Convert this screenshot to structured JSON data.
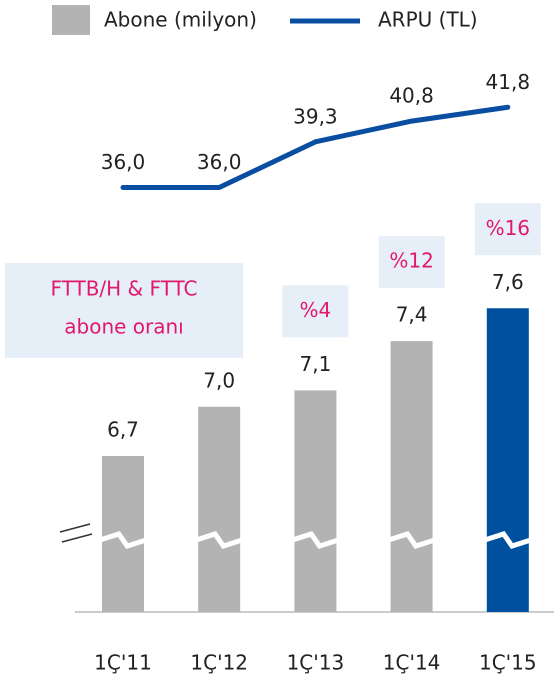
{
  "chart_data": {
    "type": "combo",
    "categories": [
      "1Ç'11",
      "1Ç'12",
      "1Ç'13",
      "1Ç'14",
      "1Ç'15"
    ],
    "series": [
      {
        "name": "Abone (milyon)",
        "type": "bar",
        "color": "#b3b3b3",
        "colors": [
          "#b3b3b3",
          "#b3b3b3",
          "#b3b3b3",
          "#b3b3b3",
          "#0050a0"
        ],
        "values": [
          6.7,
          7.0,
          7.1,
          7.4,
          7.6
        ],
        "value_labels": [
          "6,7",
          "7,0",
          "7,1",
          "7,4",
          "7,6"
        ]
      },
      {
        "name": "ARPU (TL)",
        "type": "line",
        "axis": "y2",
        "color": "#0a4ea2",
        "values": [
          36.0,
          36.0,
          39.3,
          40.8,
          41.8
        ],
        "value_labels": [
          "36,0",
          "36,0",
          "39,3",
          "40,8",
          "41,8"
        ]
      }
    ],
    "shares": {
      "values": [
        null,
        null,
        4,
        12,
        16
      ],
      "value_labels": [
        null,
        null,
        "%4",
        "%12",
        "%16"
      ],
      "color": "#e0196e"
    },
    "note": [
      "FTTB/H & FTTC",
      "abone oranı"
    ],
    "ylim": [
      5.75,
      7.9
    ],
    "y2lim": [
      33,
      45
    ]
  }
}
